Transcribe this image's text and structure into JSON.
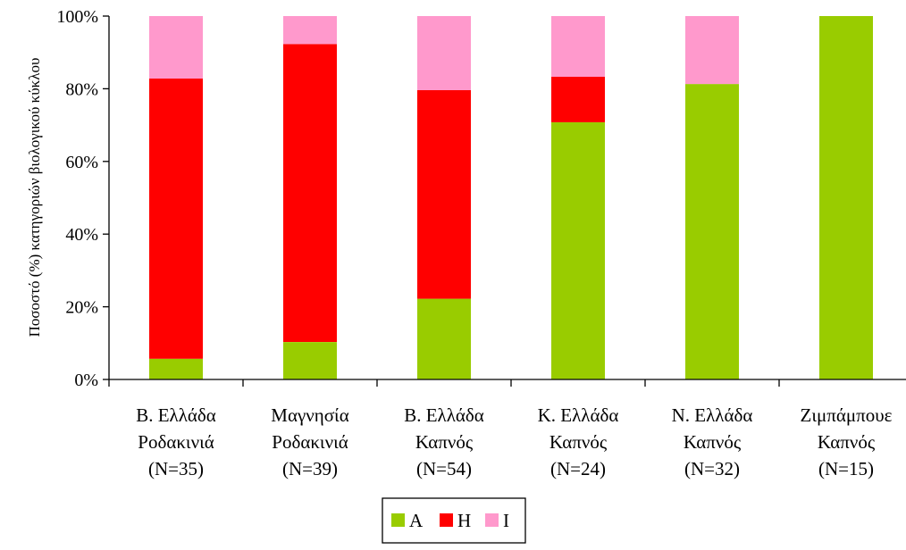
{
  "chart_data": {
    "type": "bar",
    "stacked": true,
    "percent": true,
    "categories": [
      [
        "Β. Ελλάδα",
        "Ροδακινιά",
        "(N=35)"
      ],
      [
        "Μαγνησία",
        "Ροδακινιά",
        "(N=39)"
      ],
      [
        "Β. Ελλάδα",
        "Καπνός",
        "(N=54)"
      ],
      [
        "Κ. Ελλάδα",
        "Καπνός",
        "(N=24)"
      ],
      [
        "Ν. Ελλάδα",
        "Καπνός",
        "(N=32)"
      ],
      [
        "Ζιμπάμπουε",
        "Καπνός",
        "(N=15)"
      ]
    ],
    "series": [
      {
        "name": "A",
        "color": "#99cc00",
        "values": [
          5.7,
          10.3,
          22.2,
          70.8,
          81.3,
          100
        ]
      },
      {
        "name": "H",
        "color": "#ff0000",
        "values": [
          77.1,
          82.0,
          57.4,
          12.5,
          0,
          0
        ]
      },
      {
        "name": "I",
        "color": "#ff99cc",
        "values": [
          17.2,
          7.7,
          20.4,
          16.7,
          18.7,
          0
        ]
      }
    ],
    "ylabel": "Ποσοστό (%) κατηγοριών βιολογικού κύκλου",
    "xlabel": "",
    "ylim": [
      0,
      100
    ],
    "yticks": [
      "0%",
      "20%",
      "40%",
      "60%",
      "80%",
      "100%"
    ],
    "grid": false,
    "legend_position": "bottom-center"
  }
}
